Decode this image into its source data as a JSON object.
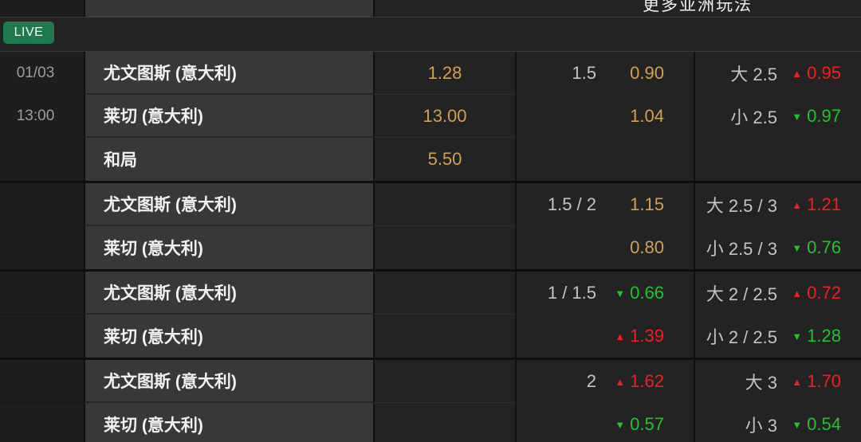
{
  "header": {
    "more_markets_label": "更多亚洲玩法",
    "live_badge": "LIVE"
  },
  "match": {
    "date": "01/03",
    "time": "13:00",
    "home": "尤文图斯 (意大利)",
    "away": "莱切 (意大利)",
    "draw": "和局"
  },
  "colors": {
    "odds_default": "#d3a04e",
    "odds_up": "#ef1f1f",
    "odds_down": "#1fc42a",
    "live_badge_bg": "#1e7a4c"
  },
  "groups": [
    {
      "rows": [
        {
          "team": "尤文图斯 (意大利)",
          "x12": "1.28",
          "hcp_label": "1.5",
          "hcp_odds": "0.90",
          "ou_label": "大 2.5",
          "ou_arrow": "▲",
          "ou_trend": "up",
          "ou_odds": "0.95"
        },
        {
          "team": "莱切 (意大利)",
          "x12": "13.00",
          "hcp_odds": "1.04",
          "ou_label": "小 2.5",
          "ou_arrow": "▼",
          "ou_trend": "down",
          "ou_odds": "0.97"
        },
        {
          "team": "和局",
          "x12": "5.50"
        }
      ]
    },
    {
      "rows": [
        {
          "team": "尤文图斯 (意大利)",
          "hcp_label": "1.5 / 2",
          "hcp_odds": "1.15",
          "ou_label": "大 2.5 / 3",
          "ou_arrow": "▲",
          "ou_trend": "up",
          "ou_odds": "1.21"
        },
        {
          "team": "莱切 (意大利)",
          "hcp_odds": "0.80",
          "ou_label": "小 2.5 / 3",
          "ou_arrow": "▼",
          "ou_trend": "down",
          "ou_odds": "0.76"
        }
      ]
    },
    {
      "rows": [
        {
          "team": "尤文图斯 (意大利)",
          "hcp_label": "1 / 1.5",
          "hcp_arrow": "▼",
          "hcp_trend": "down",
          "hcp_odds": "0.66",
          "ou_label": "大 2 / 2.5",
          "ou_arrow": "▲",
          "ou_trend": "up",
          "ou_odds": "0.72"
        },
        {
          "team": "莱切 (意大利)",
          "hcp_arrow": "▲",
          "hcp_trend": "up",
          "hcp_odds": "1.39",
          "ou_label": "小 2 / 2.5",
          "ou_arrow": "▼",
          "ou_trend": "down",
          "ou_odds": "1.28"
        }
      ]
    },
    {
      "rows": [
        {
          "team": "尤文图斯 (意大利)",
          "hcp_label": "2",
          "hcp_arrow": "▲",
          "hcp_trend": "up",
          "hcp_odds": "1.62",
          "ou_label": "大 3",
          "ou_arrow": "▲",
          "ou_trend": "up",
          "ou_odds": "1.70"
        },
        {
          "team": "莱切 (意大利)",
          "hcp_arrow": "▼",
          "hcp_trend": "down",
          "hcp_odds": "0.57",
          "ou_label": "小 3",
          "ou_arrow": "▼",
          "ou_trend": "down",
          "ou_odds": "0.54"
        }
      ]
    }
  ]
}
